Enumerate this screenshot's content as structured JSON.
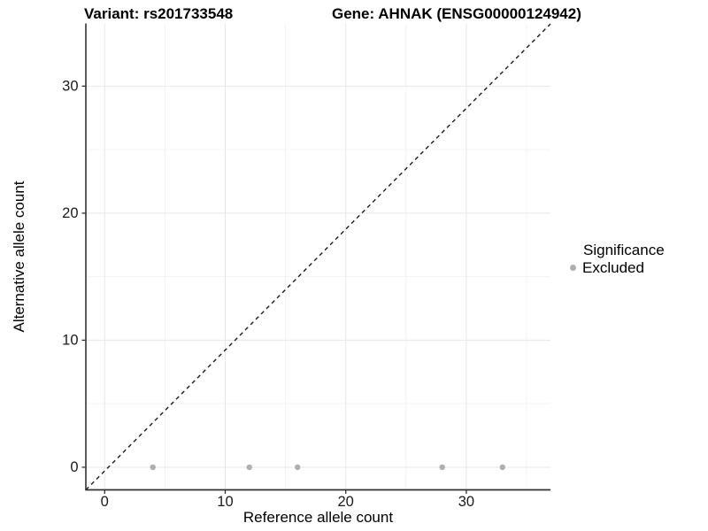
{
  "header": {
    "variant_title": "Variant: rs201733548",
    "gene_title": "Gene: AHNAK (ENSG00000124942)"
  },
  "legend": {
    "title": "Significance",
    "items": [
      {
        "label": "Excluded",
        "color": "#aeaeae",
        "marker": "dot"
      }
    ]
  },
  "chart_data": {
    "type": "scatter",
    "title_left": "Variant: rs201733548",
    "title_right": "Gene: AHNAK (ENSG00000124942)",
    "xlabel": "Reference allele count",
    "ylabel": "Alternative allele count",
    "xlim": [
      -1.56,
      36.98
    ],
    "ylim": [
      -1.78,
      34.9
    ],
    "xticks": [
      0,
      10,
      20,
      30
    ],
    "yticks": [
      0,
      10,
      20,
      30
    ],
    "minor_xticks": [
      5,
      15,
      25,
      35
    ],
    "minor_yticks": [
      5,
      15,
      25
    ],
    "grid": true,
    "legend_position": "right",
    "series": [
      {
        "name": "Excluded",
        "color": "#aeaeae",
        "points": [
          {
            "x": 4,
            "y": 0
          },
          {
            "x": 12,
            "y": 0
          },
          {
            "x": 16,
            "y": 0
          },
          {
            "x": 28,
            "y": 0
          },
          {
            "x": 33,
            "y": 0
          }
        ]
      }
    ],
    "reference_line": {
      "description": "dashed identity line y = x",
      "slope": 1,
      "intercept": 0,
      "style": "dashed",
      "color": "#1a1a1a"
    }
  },
  "colors": {
    "background": "#ffffff",
    "grid_major": "#e7e7e7",
    "grid_minor": "#f3f3f3",
    "axis": "#333333",
    "point": "#aeaeae",
    "text": "#000000"
  }
}
